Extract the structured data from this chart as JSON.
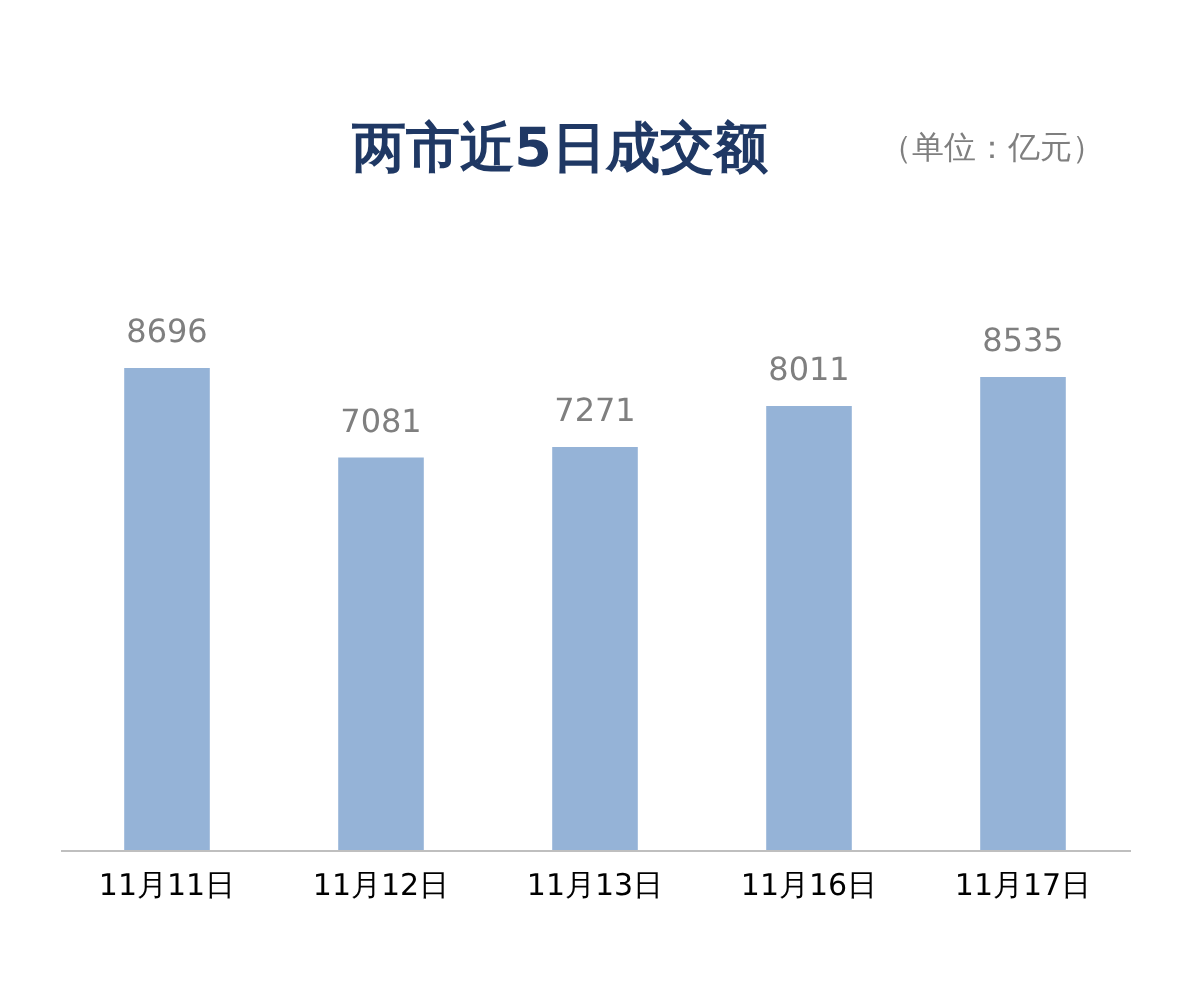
{
  "chart_data": {
    "type": "bar",
    "title": "两市近5日成交额",
    "subtitle": "（单位：亿元）",
    "categories": [
      "11月11日",
      "11月12日",
      "11月13日",
      "11月16日",
      "11月17日"
    ],
    "values": [
      8696,
      7081,
      7271,
      8011,
      8535
    ],
    "color": "#95b3d7",
    "data_labels": true
  }
}
